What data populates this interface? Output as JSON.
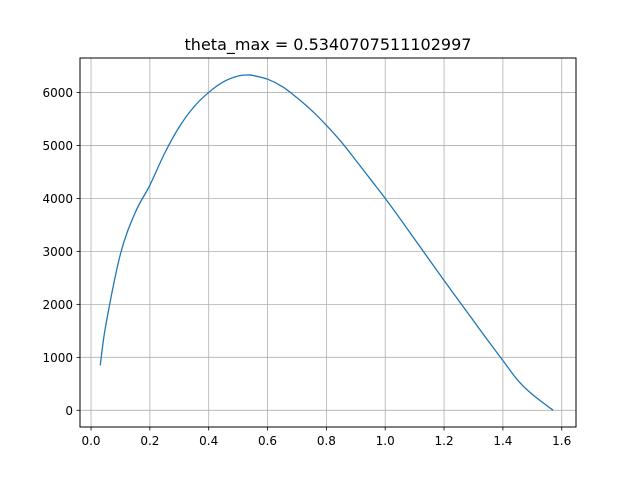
{
  "chart_data": {
    "type": "line",
    "title": "theta_max = 0.5340707511102997",
    "xlabel": "",
    "ylabel": "",
    "xlim": [
      -0.0375,
      1.6485
    ],
    "ylim": [
      -315,
      6650
    ],
    "xticks": [
      0.0,
      0.2,
      0.4,
      0.6,
      0.8,
      1.0,
      1.2,
      1.4,
      1.6
    ],
    "xtick_labels": [
      "0.0",
      "0.2",
      "0.4",
      "0.6",
      "0.8",
      "1.0",
      "1.2",
      "1.4",
      "1.6"
    ],
    "yticks": [
      0,
      1000,
      2000,
      3000,
      4000,
      5000,
      6000
    ],
    "ytick_labels": [
      "0",
      "1000",
      "2000",
      "3000",
      "4000",
      "5000",
      "6000"
    ],
    "grid": true,
    "legend": "none",
    "series": [
      {
        "color": "#1f77b4",
        "x": [
          0.0314,
          0.05,
          0.1,
          0.15,
          0.2,
          0.25,
          0.3,
          0.35,
          0.4,
          0.45,
          0.5,
          0.534,
          0.55,
          0.6,
          0.65,
          0.7,
          0.75,
          0.8,
          0.85,
          0.9,
          0.95,
          1.0,
          1.05,
          1.1,
          1.15,
          1.2,
          1.25,
          1.3,
          1.35,
          1.4,
          1.45,
          1.5,
          1.5708
        ],
        "y": [
          850,
          1600,
          2950,
          3730,
          4250,
          4850,
          5350,
          5730,
          6000,
          6200,
          6310,
          6330,
          6320,
          6250,
          6110,
          5900,
          5660,
          5380,
          5070,
          4720,
          4360,
          4000,
          3620,
          3230,
          2840,
          2450,
          2070,
          1690,
          1310,
          940,
          570,
          300,
          0
        ]
      }
    ]
  }
}
